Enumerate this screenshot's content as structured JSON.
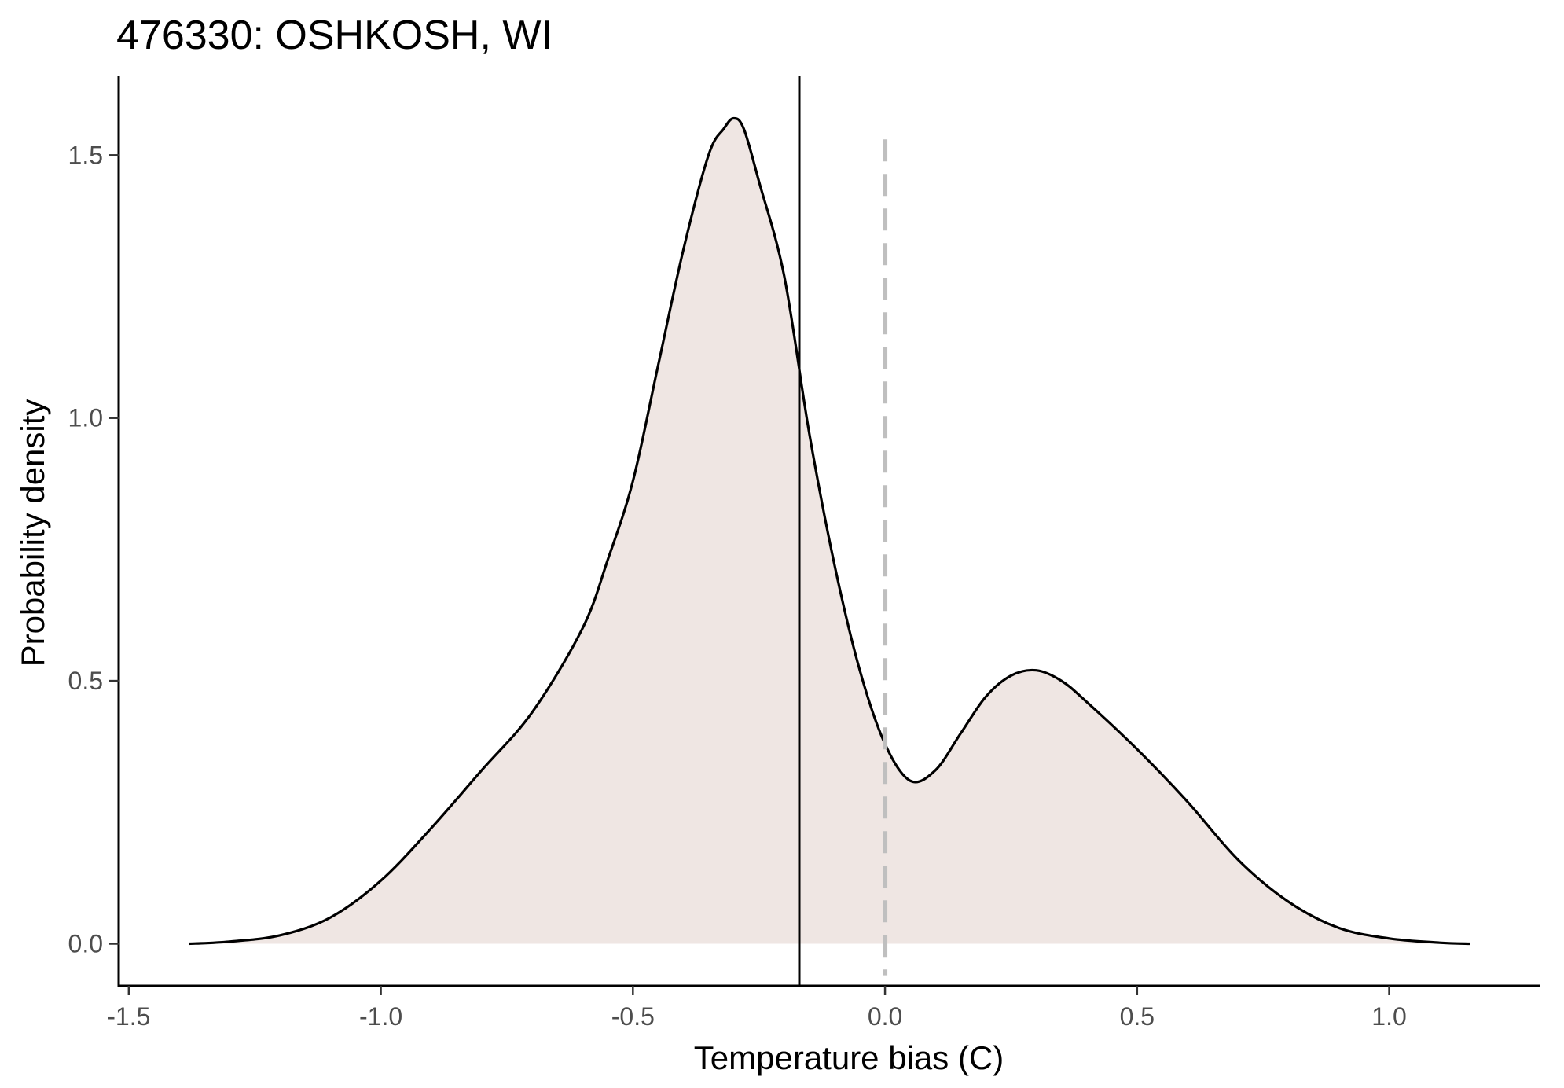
{
  "chart_data": {
    "type": "area",
    "title": "476330: OSHKOSH, WI",
    "xlabel": "Temperature bias (C)",
    "ylabel": "Probability density",
    "xlim": [
      -1.52,
      1.3
    ],
    "ylim": [
      -0.08,
      1.65
    ],
    "x_ticks": [
      {
        "value": -1.5,
        "label": "-1.5"
      },
      {
        "value": -1.0,
        "label": "-1.0"
      },
      {
        "value": -0.5,
        "label": "-0.5"
      },
      {
        "value": 0.0,
        "label": "0.0"
      },
      {
        "value": 0.5,
        "label": "0.5"
      },
      {
        "value": 1.0,
        "label": "1.0"
      }
    ],
    "y_ticks": [
      {
        "value": 0.0,
        "label": "0.0"
      },
      {
        "value": 0.5,
        "label": "0.5"
      },
      {
        "value": 1.0,
        "label": "1.0"
      },
      {
        "value": 1.5,
        "label": "1.5"
      }
    ],
    "grid": false,
    "fill_color": "#efe6e3",
    "line_color": "#000000",
    "series": [
      {
        "x": [
          -1.38,
          -1.3,
          -1.2,
          -1.1,
          -1.0,
          -0.9,
          -0.8,
          -0.7,
          -0.6,
          -0.55,
          -0.5,
          -0.45,
          -0.4,
          -0.35,
          -0.32,
          -0.3,
          -0.28,
          -0.25,
          -0.2,
          -0.15,
          -0.1,
          -0.05,
          0.0,
          0.05,
          0.1,
          0.15,
          0.2,
          0.25,
          0.3,
          0.35,
          0.4,
          0.5,
          0.6,
          0.7,
          0.8,
          0.9,
          1.0,
          1.1,
          1.16
        ],
        "y": [
          0.0,
          0.004,
          0.016,
          0.05,
          0.12,
          0.22,
          0.33,
          0.44,
          0.6,
          0.73,
          0.88,
          1.1,
          1.32,
          1.5,
          1.55,
          1.57,
          1.55,
          1.45,
          1.27,
          0.97,
          0.72,
          0.52,
          0.38,
          0.31,
          0.33,
          0.4,
          0.47,
          0.51,
          0.52,
          0.5,
          0.46,
          0.37,
          0.27,
          0.16,
          0.08,
          0.03,
          0.01,
          0.002,
          0.0
        ]
      }
    ],
    "reference_lines": [
      {
        "x": -0.17,
        "style": "solid",
        "color": "#000000"
      },
      {
        "x": 0.0,
        "style": "dashed",
        "color": "#bfbfbf"
      }
    ]
  }
}
